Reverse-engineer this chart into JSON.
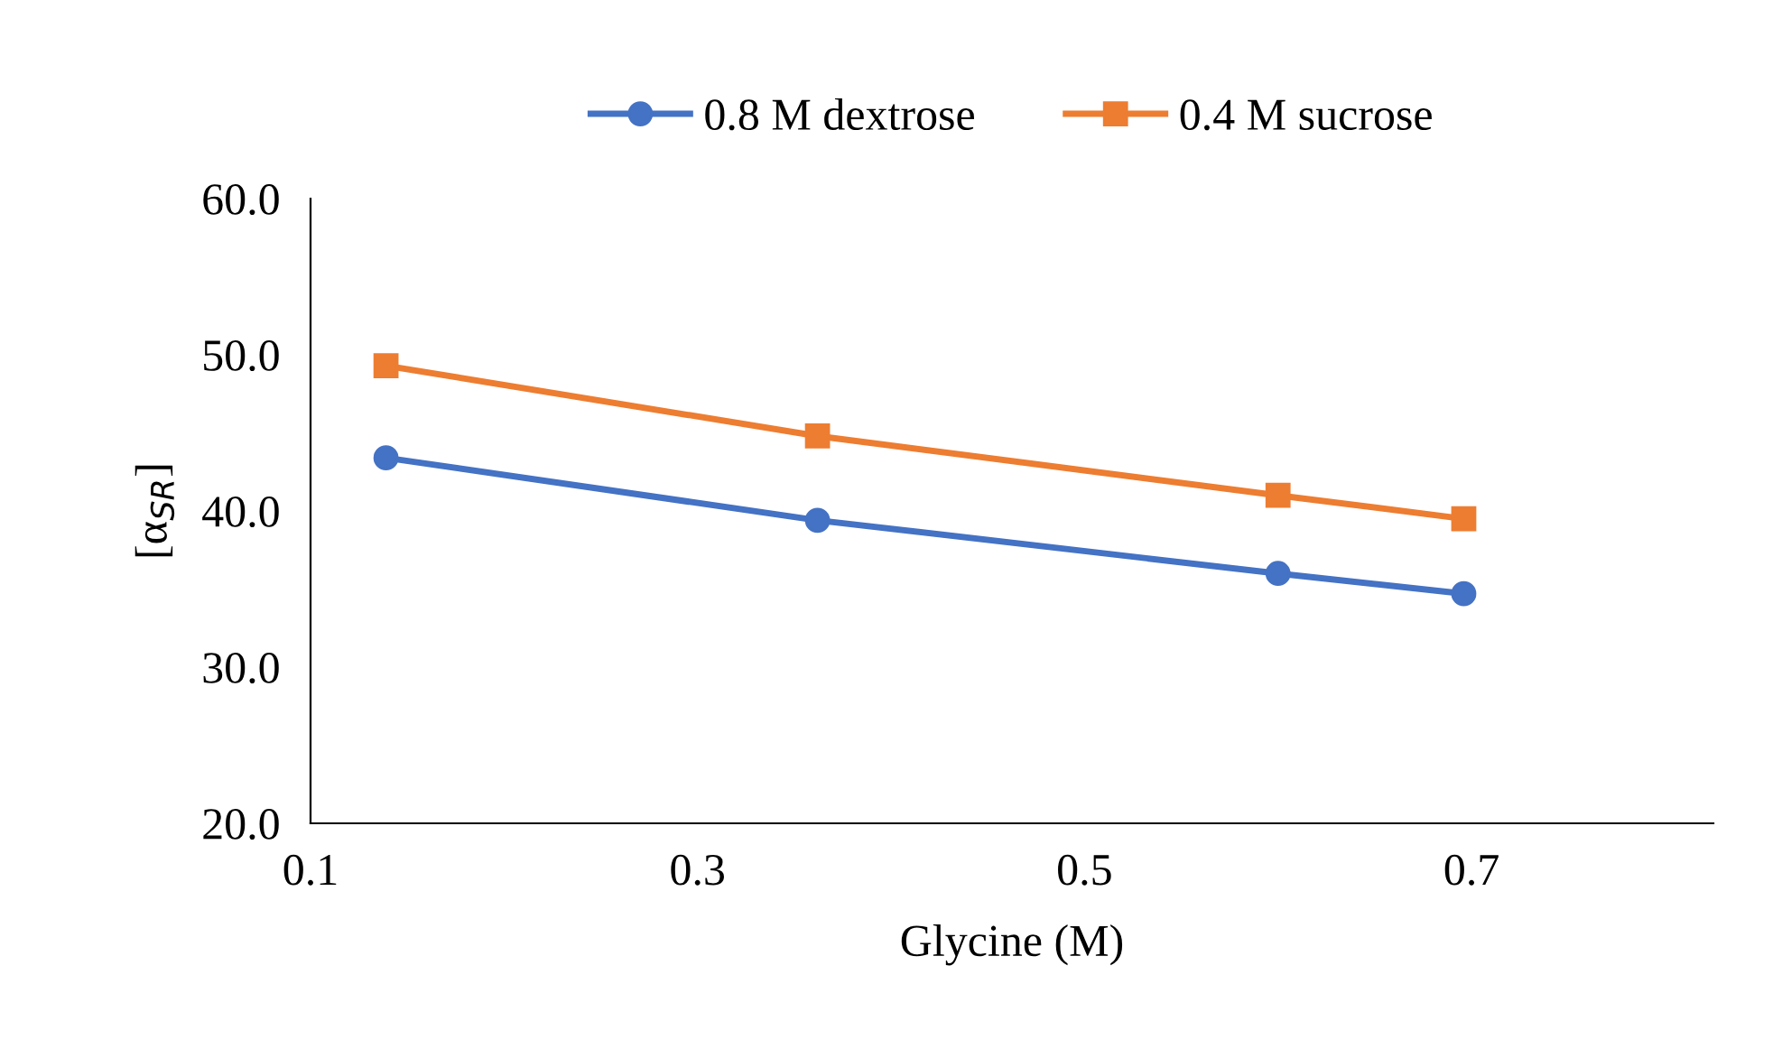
{
  "chart_data": {
    "type": "line",
    "xlabel": "Glycine (M)",
    "ylabel": "[α$_{SR}$]",
    "x": [
      0.139,
      0.362,
      0.6,
      0.696
    ],
    "series": [
      {
        "name": "0.8 M dextrose",
        "color": "#4472c4",
        "marker": "circle",
        "values": [
          43.4,
          39.4,
          36.0,
          34.7
        ]
      },
      {
        "name": "0.4 M sucrose",
        "color": "#ed7d31",
        "marker": "square",
        "values": [
          49.3,
          44.8,
          41.0,
          39.5
        ]
      }
    ],
    "xlim": [
      0.1,
      0.825
    ],
    "xticks": [
      0.1,
      0.3,
      0.5,
      0.7
    ],
    "ylim": [
      20,
      60
    ],
    "yticks": [
      {
        "value": 20,
        "label": "20.0"
      },
      {
        "value": 30,
        "label": "30.0"
      },
      {
        "value": 40,
        "label": "40.0"
      },
      {
        "value": 50,
        "label": "50.0"
      },
      {
        "value": 60,
        "label": "60.0"
      }
    ],
    "grid": false,
    "legend": "top",
    "line_style": "solid"
  }
}
